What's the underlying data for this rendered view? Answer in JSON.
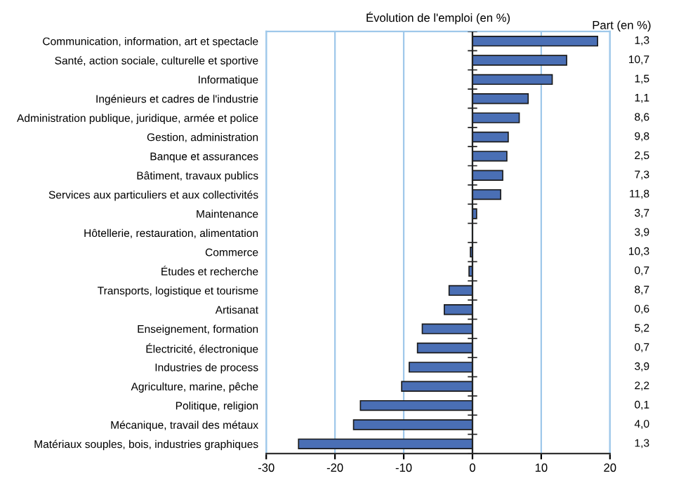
{
  "chart_data": {
    "type": "bar",
    "orientation": "horizontal",
    "title": "Évolution de l'emploi (en %)",
    "categories": [
      "Communication, information, art et spectacle",
      "Santé, action sociale, culturelle et sportive",
      "Informatique",
      "Ingénieurs et cadres de l'industrie",
      "Administration publique, juridique, armée et police",
      "Gestion, administration",
      "Banque et assurances",
      "Bâtiment, travaux publics",
      "Services aux particuliers et aux collectivités",
      "Maintenance",
      "Hôtellerie, restauration, alimentation",
      "Commerce",
      "Études et recherche",
      "Transports, logistique et tourisme",
      "Artisanat",
      "Enseignement, formation",
      "Électricité, électronique",
      "Industries de process",
      "Agriculture, marine, pêche",
      "Politique, religion",
      "Mécanique, travail des métaux",
      "Matériaux souples, bois, industries graphiques"
    ],
    "values": [
      18.2,
      13.7,
      11.6,
      8.1,
      6.8,
      5.2,
      5.0,
      4.4,
      4.1,
      0.6,
      null,
      -0.3,
      -0.5,
      -3.4,
      -4.1,
      -7.3,
      -8.0,
      -9.2,
      -10.3,
      -16.3,
      -17.3,
      -25.3
    ],
    "color": "#4a6fb5",
    "xlim": [
      -30,
      20
    ],
    "xticks": [
      -30,
      -20,
      -10,
      0,
      10,
      20
    ],
    "grid": "x",
    "annotations": [
      "Part (en %)",
      "1,3",
      "10,7",
      "1,5",
      "1,1",
      "8,6",
      "9,8",
      "2,5",
      "7,3",
      "11,8",
      "3,7",
      "3,9",
      "10,3",
      "0,7",
      "8,7",
      "0,6",
      "5,2",
      "0,7",
      "3,9",
      "2,2",
      "0,1",
      "4,0",
      "1,3"
    ]
  }
}
